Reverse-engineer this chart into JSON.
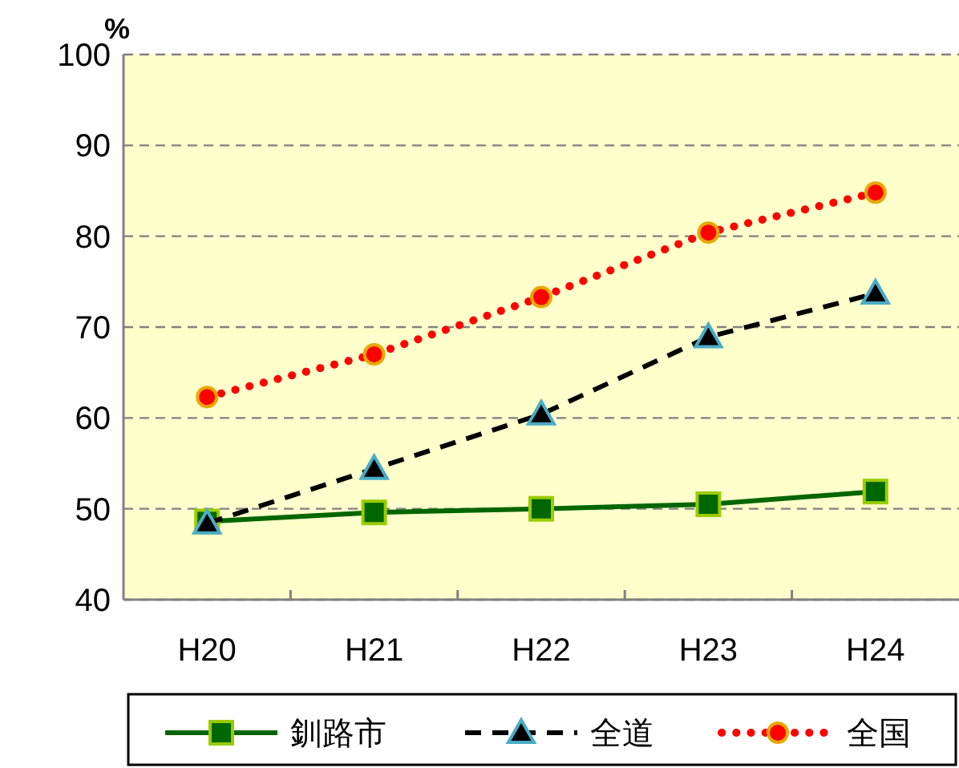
{
  "chart_data": {
    "type": "line",
    "ylabel": "%",
    "categories": [
      "H20",
      "H21",
      "H22",
      "H23",
      "H24"
    ],
    "ylim": [
      40,
      100
    ],
    "yticks": [
      40,
      50,
      60,
      70,
      80,
      90,
      100
    ],
    "grid": "y",
    "legend": "bottom",
    "series": [
      {
        "name": "釧路市",
        "color": "#006600",
        "marker": "square",
        "line_style": "solid",
        "values": [
          48.6,
          49.6,
          50.0,
          50.5,
          51.9
        ]
      },
      {
        "name": "全道",
        "color": "#000000",
        "marker": "triangle",
        "line_style": "dashed",
        "values": [
          48.4,
          54.4,
          60.4,
          68.9,
          73.7
        ]
      },
      {
        "name": "全国",
        "color": "#ff0000",
        "marker": "circle",
        "line_style": "dotted",
        "values": [
          62.3,
          67.0,
          73.3,
          80.4,
          84.8
        ]
      }
    ]
  }
}
